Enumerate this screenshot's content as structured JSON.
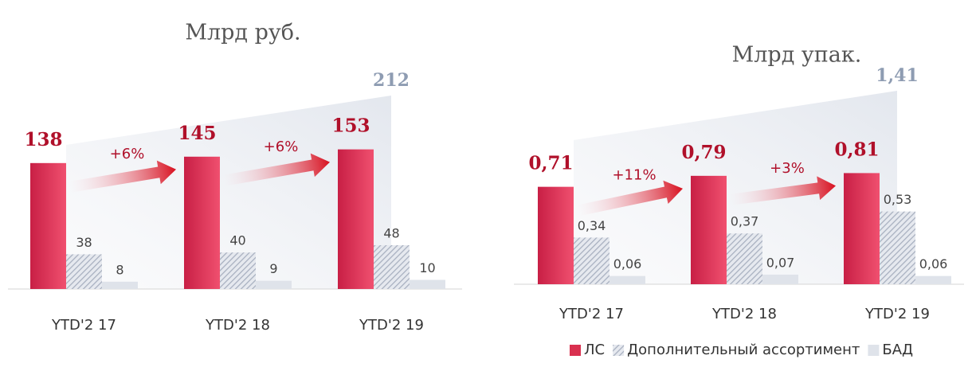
{
  "chart_data": [
    {
      "type": "bar",
      "title": "Млрд руб.",
      "categories": [
        "YTD'2 17",
        "YTD'2 18",
        "YTD'2 19"
      ],
      "series": [
        {
          "color": "#d9304f",
          "values": [
            138,
            145,
            153
          ]
        },
        {
          "color": "#aeb6c6",
          "pattern": "hatch",
          "values": [
            38,
            40,
            48
          ]
        },
        {
          "color": "#dfe3ea",
          "values": [
            8,
            9,
            10
          ]
        }
      ],
      "total": 212,
      "annotations": [
        "+6%",
        "+6%"
      ]
    },
    {
      "type": "bar",
      "title": "Млрд  упак.",
      "categories": [
        "YTD'2 17",
        "YTD'2 18",
        "YTD'2 19"
      ],
      "series": [
        {
          "name": "ЛС",
          "color": "#d9304f",
          "values": [
            0.71,
            0.79,
            0.81
          ],
          "value_labels": [
            "0,71",
            "0,79",
            "0,81"
          ]
        },
        {
          "name": "Дополнительный ассортимент",
          "color": "#aeb6c6",
          "pattern": "hatch",
          "values": [
            0.34,
            0.37,
            0.53
          ],
          "value_labels": [
            "0,34",
            "0,37",
            "0,53"
          ]
        },
        {
          "name": "БАД",
          "color": "#dfe3ea",
          "values": [
            0.06,
            0.07,
            0.06
          ],
          "value_labels": [
            "0,06",
            "0,07",
            "0,06"
          ]
        }
      ],
      "total": {
        "value": 1.41,
        "label": "1,41"
      },
      "annotations": [
        "+11%",
        "+3%"
      ]
    }
  ]
}
